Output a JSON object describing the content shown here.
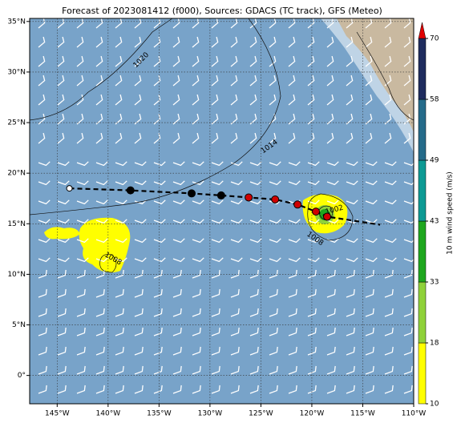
{
  "chart_data": {
    "type": "map",
    "title": "Forecast of 2023081412 (f000), Sources: GDACS (TC track), GFS (Meteo)",
    "xlim": [
      -147.7,
      -110
    ],
    "ylim": [
      -2.8,
      35.3
    ],
    "xticks": [
      {
        "value": -145,
        "label": "145°W"
      },
      {
        "value": -140,
        "label": "140°W"
      },
      {
        "value": -135,
        "label": "135°W"
      },
      {
        "value": -130,
        "label": "130°W"
      },
      {
        "value": -125,
        "label": "125°W"
      },
      {
        "value": -120,
        "label": "120°W"
      },
      {
        "value": -115,
        "label": "115°W"
      },
      {
        "value": -110,
        "label": "110°W"
      }
    ],
    "yticks": [
      {
        "value": 0,
        "label": "0°"
      },
      {
        "value": 5,
        "label": "5°N"
      },
      {
        "value": 10,
        "label": "10°N"
      },
      {
        "value": 15,
        "label": "15°N"
      },
      {
        "value": 20,
        "label": "20°N"
      },
      {
        "value": 25,
        "label": "25°N"
      },
      {
        "value": 30,
        "label": "30°N"
      },
      {
        "value": 35,
        "label": "35°N"
      }
    ],
    "grid": true,
    "track": {
      "x": [
        -143.8,
        -137.8,
        -131.8,
        -128.9,
        -126.2,
        -123.6,
        -121.4,
        -119.6,
        -118.5,
        -113.3
      ],
      "y": [
        18.5,
        18.3,
        18.0,
        17.8,
        17.6,
        17.4,
        16.9,
        16.2,
        15.7,
        14.9
      ]
    },
    "isobar_labels": [
      1020,
      1014,
      1008,
      1008,
      1002
    ],
    "colorbar": {
      "label": "10 m wind speed (m/s)",
      "ticks": [
        10,
        18,
        33,
        43,
        49,
        58,
        70
      ],
      "colors": [
        "#ffff00",
        "#8fd13a",
        "#1fa71f",
        "#0d9a94",
        "#256b8a",
        "#1f2c5e"
      ],
      "extend_color": "#e00000"
    }
  }
}
